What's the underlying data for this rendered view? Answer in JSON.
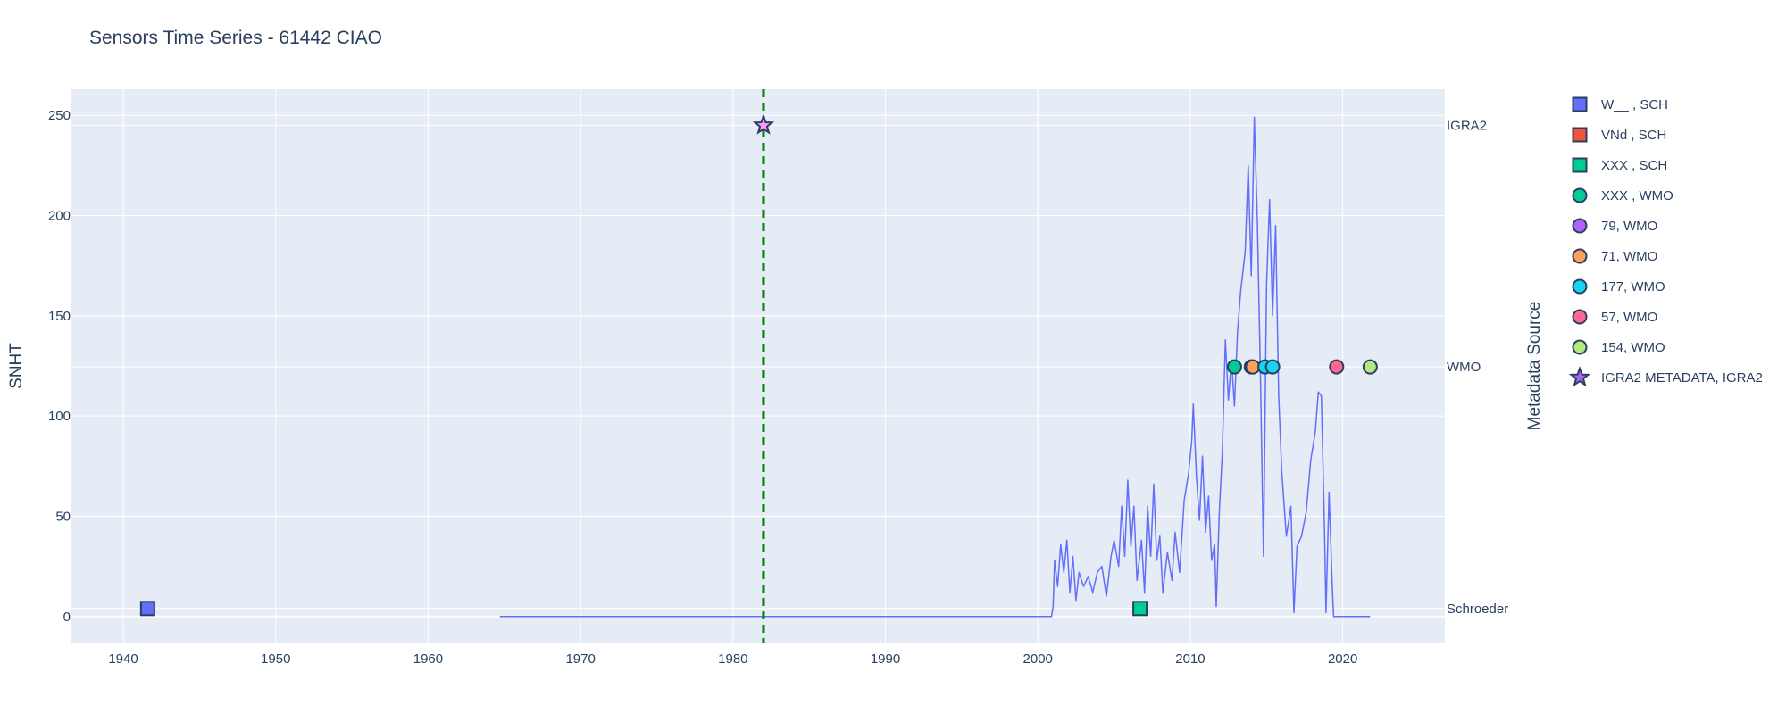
{
  "chart_data": {
    "type": "line",
    "title": "Sensors Time Series - 61442 CIAO",
    "ylabel": "SNHT",
    "y2label": "Metadata Source",
    "xlim": [
      1936.6,
      2026.7
    ],
    "ylim": [
      -13,
      263
    ],
    "x_ticks": [
      "1940",
      "1950",
      "1960",
      "1970",
      "1980",
      "1990",
      "2000",
      "2010",
      "2020"
    ],
    "y_ticks": [
      "0",
      "50",
      "100",
      "150",
      "200",
      "250"
    ],
    "y2_ticks": [
      {
        "label": "IGRA2",
        "y": 245
      },
      {
        "label": "WMO",
        "y": 124.5
      },
      {
        "label": "Schroeder",
        "y": 4
      }
    ],
    "grid": true,
    "colors": {
      "plot_bg": "#e5ecf6",
      "grid": "#ffffff",
      "snht_line": "#636efa",
      "vline": "#008000",
      "marker_edge": "#2a3f5f"
    },
    "vline": {
      "x": 1982.0,
      "style": "dashed"
    },
    "snht_series": [
      [
        1964.7,
        0
      ],
      [
        2000.9,
        0
      ],
      [
        2001.0,
        5
      ],
      [
        2001.1,
        28
      ],
      [
        2001.3,
        15
      ],
      [
        2001.5,
        36
      ],
      [
        2001.7,
        22
      ],
      [
        2001.9,
        38
      ],
      [
        2002.1,
        12
      ],
      [
        2002.3,
        30
      ],
      [
        2002.5,
        8
      ],
      [
        2002.7,
        22
      ],
      [
        2003.0,
        15
      ],
      [
        2003.3,
        20
      ],
      [
        2003.6,
        12
      ],
      [
        2003.9,
        22
      ],
      [
        2004.2,
        25
      ],
      [
        2004.5,
        10
      ],
      [
        2004.8,
        30
      ],
      [
        2005.0,
        38
      ],
      [
        2005.3,
        25
      ],
      [
        2005.5,
        55
      ],
      [
        2005.7,
        30
      ],
      [
        2005.9,
        68
      ],
      [
        2006.1,
        35
      ],
      [
        2006.3,
        55
      ],
      [
        2006.5,
        18
      ],
      [
        2006.8,
        38
      ],
      [
        2007.0,
        12
      ],
      [
        2007.2,
        55
      ],
      [
        2007.4,
        30
      ],
      [
        2007.6,
        66
      ],
      [
        2007.8,
        28
      ],
      [
        2008.0,
        40
      ],
      [
        2008.2,
        12
      ],
      [
        2008.5,
        32
      ],
      [
        2008.8,
        18
      ],
      [
        2009.0,
        42
      ],
      [
        2009.3,
        22
      ],
      [
        2009.6,
        58
      ],
      [
        2009.9,
        72
      ],
      [
        2010.1,
        88
      ],
      [
        2010.2,
        106
      ],
      [
        2010.4,
        70
      ],
      [
        2010.6,
        48
      ],
      [
        2010.8,
        80
      ],
      [
        2011.0,
        42
      ],
      [
        2011.2,
        60
      ],
      [
        2011.4,
        28
      ],
      [
        2011.6,
        36
      ],
      [
        2011.7,
        5
      ],
      [
        2011.9,
        52
      ],
      [
        2012.1,
        82
      ],
      [
        2012.3,
        138
      ],
      [
        2012.5,
        108
      ],
      [
        2012.7,
        128
      ],
      [
        2012.9,
        105
      ],
      [
        2013.1,
        142
      ],
      [
        2013.3,
        162
      ],
      [
        2013.6,
        182
      ],
      [
        2013.8,
        225
      ],
      [
        2014.0,
        170
      ],
      [
        2014.2,
        249
      ],
      [
        2014.4,
        198
      ],
      [
        2014.6,
        120
      ],
      [
        2014.8,
        30
      ],
      [
        2015.0,
        165
      ],
      [
        2015.2,
        208
      ],
      [
        2015.4,
        150
      ],
      [
        2015.6,
        195
      ],
      [
        2015.8,
        110
      ],
      [
        2016.0,
        72
      ],
      [
        2016.3,
        40
      ],
      [
        2016.6,
        55
      ],
      [
        2016.8,
        2
      ],
      [
        2017.0,
        35
      ],
      [
        2017.3,
        40
      ],
      [
        2017.6,
        52
      ],
      [
        2017.9,
        78
      ],
      [
        2018.2,
        92
      ],
      [
        2018.4,
        112
      ],
      [
        2018.6,
        110
      ],
      [
        2018.8,
        46
      ],
      [
        2018.9,
        2
      ],
      [
        2019.1,
        62
      ],
      [
        2019.3,
        18
      ],
      [
        2019.4,
        0
      ],
      [
        2021.8,
        0
      ]
    ],
    "series": [
      {
        "name": "W__ , SCH",
        "symbol": "square",
        "color": "#636efa",
        "points": [
          [
            1941.6,
            4
          ]
        ]
      },
      {
        "name": "VNd , SCH",
        "symbol": "square",
        "color": "#ef553b",
        "points": []
      },
      {
        "name": "XXX , SCH",
        "symbol": "square",
        "color": "#00cc96",
        "points": [
          [
            2006.7,
            4
          ]
        ]
      },
      {
        "name": "XXX , WMO",
        "symbol": "circle",
        "color": "#00cc96",
        "points": [
          [
            2012.9,
            124.5
          ]
        ]
      },
      {
        "name": "79, WMO",
        "symbol": "circle",
        "color": "#ab63fa",
        "points": [
          [
            2014.0,
            124.5
          ]
        ]
      },
      {
        "name": "71, WMO",
        "symbol": "circle",
        "color": "#ffa15a",
        "points": [
          [
            2014.1,
            124.5
          ]
        ]
      },
      {
        "name": "177, WMO",
        "symbol": "circle",
        "color": "#19d3f3",
        "points": [
          [
            2014.9,
            124.5
          ],
          [
            2015.4,
            124.5
          ]
        ]
      },
      {
        "name": "57, WMO",
        "symbol": "circle",
        "color": "#ff6692",
        "points": [
          [
            2019.6,
            124.5
          ]
        ]
      },
      {
        "name": "154, WMO",
        "symbol": "circle",
        "color": "#b6e880",
        "points": [
          [
            2021.8,
            124.5
          ]
        ]
      },
      {
        "name": "IGRA2 METADATA, IGRA2",
        "symbol": "star",
        "color": "#ff97ff",
        "legend_color": "#ab63fa",
        "points": [
          [
            1982.0,
            245
          ]
        ]
      }
    ]
  }
}
